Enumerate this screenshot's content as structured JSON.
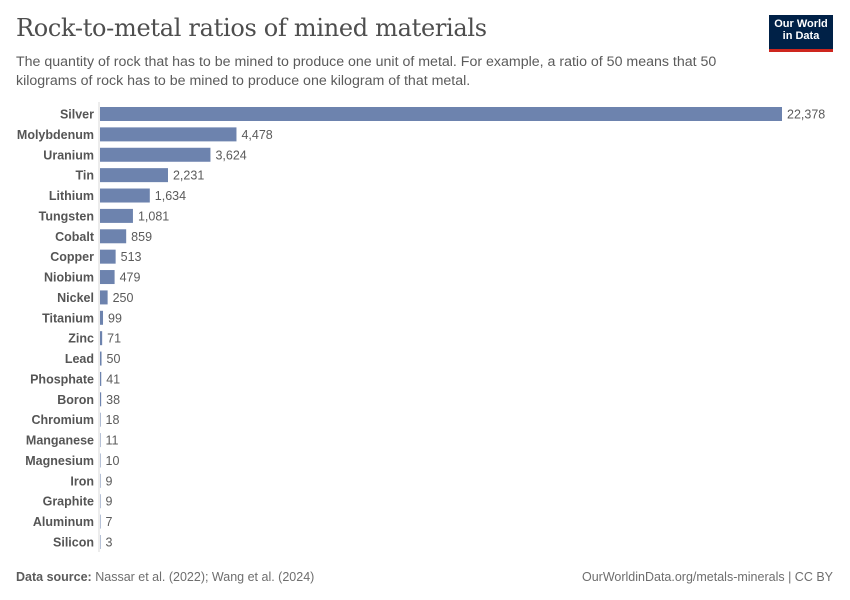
{
  "header": {
    "title": "Rock-to-metal ratios of mined materials",
    "subtitle": "The quantity of rock that has to be mined to produce one unit of metal. For example, a ratio of 50 means that 50 kilograms of rock has to be mined to produce one kilogram of that metal.",
    "logo_text": "Our World in Data"
  },
  "footer": {
    "source_label": "Data source:",
    "source": "Nassar et al. (2022); Wang et al. (2024)",
    "url": "OurWorldinData.org/metals-minerals | CC BY"
  },
  "chart_data": {
    "type": "bar",
    "orientation": "horizontal",
    "title": "Rock-to-metal ratios of mined materials",
    "categories": [
      "Silver",
      "Molybdenum",
      "Uranium",
      "Tin",
      "Lithium",
      "Tungsten",
      "Cobalt",
      "Copper",
      "Niobium",
      "Nickel",
      "Titanium",
      "Zinc",
      "Lead",
      "Phosphate",
      "Boron",
      "Chromium",
      "Manganese",
      "Magnesium",
      "Iron",
      "Graphite",
      "Aluminum",
      "Silicon"
    ],
    "values": [
      22378,
      4478,
      3624,
      2231,
      1634,
      1081,
      859,
      513,
      479,
      250,
      99,
      71,
      50,
      41,
      38,
      18,
      11,
      10,
      9,
      9,
      7,
      3
    ],
    "labels": [
      "22,378",
      "4,478",
      "3,624",
      "2,231",
      "1,634",
      "1,081",
      "859",
      "513",
      "479",
      "250",
      "99",
      "71",
      "50",
      "41",
      "38",
      "18",
      "11",
      "10",
      "9",
      "9",
      "7",
      "3"
    ],
    "xlim": [
      0,
      22378
    ],
    "bar_color": "#6d83ae",
    "grid": false
  }
}
